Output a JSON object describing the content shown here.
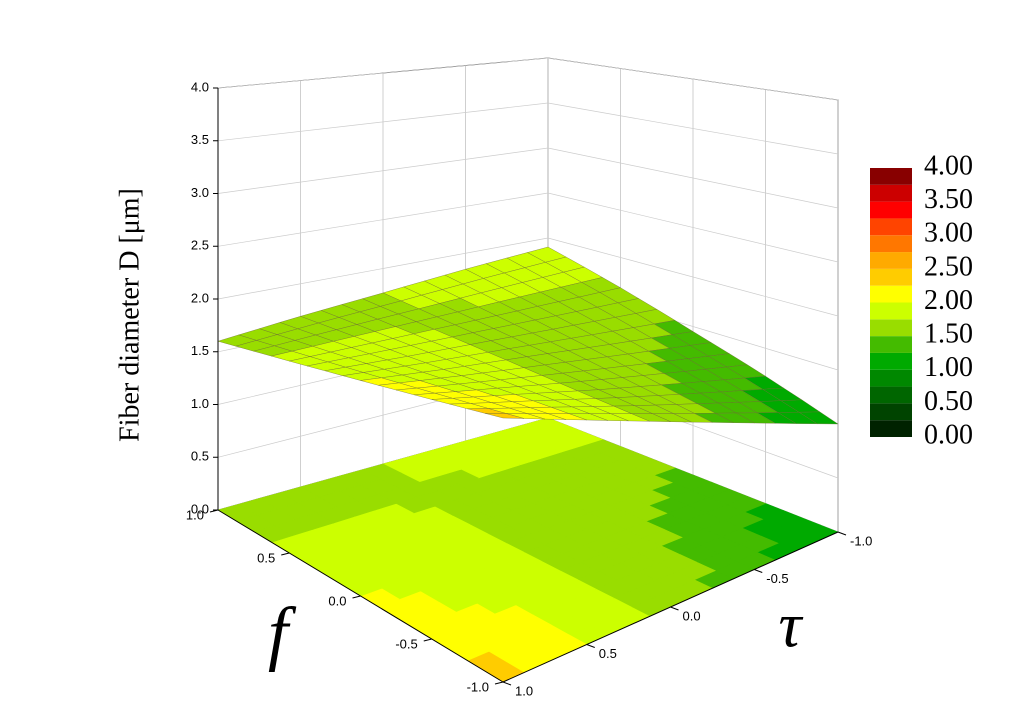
{
  "chart_data": {
    "type": "surface",
    "z_label": "Fiber diameter D [μm]",
    "x_label": "f",
    "y_label": "τ",
    "x": [
      -1,
      -0.5,
      0,
      0.5,
      1
    ],
    "y": [
      -1,
      -0.5,
      0,
      0.5,
      1
    ],
    "z": [
      [
        1.0,
        1.35,
        1.7,
        2.05,
        2.4
      ],
      [
        1.23,
        1.47,
        1.71,
        1.96,
        2.2
      ],
      [
        1.45,
        1.59,
        1.73,
        1.86,
        2.0
      ],
      [
        1.68,
        1.71,
        1.74,
        1.77,
        1.8
      ],
      [
        1.9,
        1.83,
        1.75,
        1.68,
        1.6
      ]
    ],
    "xlim": [
      -1,
      1
    ],
    "ylim": [
      -1,
      1
    ],
    "zlim": [
      0,
      4
    ],
    "xticks": [
      {
        "value": -1,
        "label": "-1.0"
      },
      -0.5,
      {
        "value": 0,
        "label": "0.0"
      },
      0.5,
      {
        "value": 1,
        "label": "1.0"
      }
    ],
    "yticks": [
      {
        "value": -1,
        "label": "-1.0"
      },
      -0.5,
      {
        "value": 0,
        "label": "0.0"
      },
      0.5,
      {
        "value": 1,
        "label": "1.0"
      }
    ],
    "zticks": [
      {
        "value": 0,
        "label": "0.0"
      },
      0.5,
      {
        "value": 1,
        "label": "1.0"
      },
      1.5,
      {
        "value": 2,
        "label": "2.0"
      },
      2.5,
      {
        "value": 3,
        "label": "3.0"
      },
      3.5,
      {
        "value": 4,
        "label": "4.0"
      }
    ],
    "grid": true,
    "colorbar": {
      "levels": [
        0,
        0.25,
        0.5,
        0.75,
        1,
        1.25,
        1.5,
        1.75,
        2,
        2.25,
        2.5,
        2.75,
        3,
        3.25,
        3.5,
        3.75,
        4
      ],
      "colors": [
        "#002200",
        "#004400",
        "#006600",
        "#008800",
        "#00aa00",
        "#44bb00",
        "#99dd00",
        "#ccff00",
        "#ffff00",
        "#ffcc00",
        "#ffaa00",
        "#ff7700",
        "#ff4400",
        "#ff0000",
        "#cc0000",
        "#880000"
      ],
      "ticks": [
        {
          "value": 0,
          "label": "0.00"
        },
        {
          "value": 0.5,
          "label": "0.50"
        },
        {
          "value": 1,
          "label": "1.00"
        },
        {
          "value": 1.5,
          "label": "1.50"
        },
        {
          "value": 2,
          "label": "2.00"
        },
        {
          "value": 2.5,
          "label": "2.50"
        },
        {
          "value": 3,
          "label": "3.00"
        },
        {
          "value": 3.5,
          "label": "3.50"
        },
        {
          "value": 4,
          "label": "4.00"
        }
      ]
    }
  }
}
